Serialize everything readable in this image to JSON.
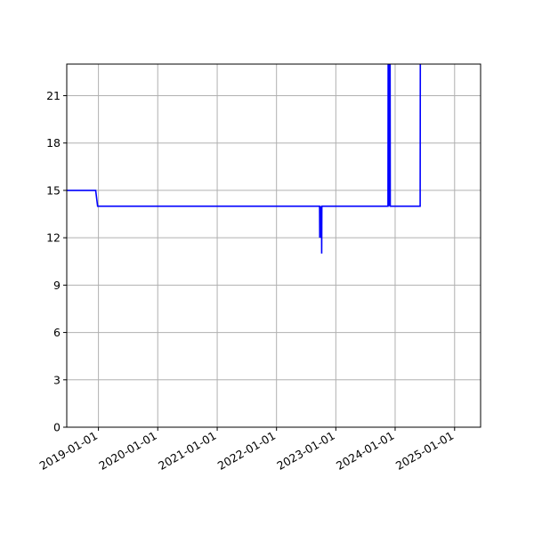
{
  "chart_data": {
    "type": "line",
    "title": "",
    "xlabel": "",
    "ylabel": "",
    "x_axis": {
      "type": "date",
      "range": [
        "2018-06-20",
        "2025-06-10"
      ],
      "ticks": [
        "2019-01-01",
        "2020-01-01",
        "2021-01-01",
        "2022-01-01",
        "2023-01-01",
        "2024-01-01",
        "2025-01-01"
      ],
      "tick_labels_rotated": true
    },
    "y_axis": {
      "range": [
        0,
        23
      ],
      "ticks": [
        0,
        3,
        6,
        9,
        12,
        15,
        18,
        21
      ],
      "tick_labels": [
        "0",
        "3",
        "6",
        "9",
        "12",
        "15",
        "18",
        "21"
      ]
    },
    "grid": true,
    "series": [
      {
        "color": "#0000ff",
        "points": [
          [
            "2018-06-20",
            15
          ],
          [
            "2018-12-15",
            15
          ],
          [
            "2018-12-27",
            14
          ],
          [
            "2022-09-23",
            14
          ],
          [
            "2022-09-24",
            12
          ],
          [
            "2022-09-25",
            14
          ],
          [
            "2022-09-26",
            12
          ],
          [
            "2022-09-27",
            14
          ],
          [
            "2022-09-28",
            12
          ],
          [
            "2022-09-29",
            14
          ],
          [
            "2022-09-30",
            12
          ],
          [
            "2022-10-01",
            14
          ],
          [
            "2022-10-02",
            12
          ],
          [
            "2022-10-03",
            14
          ],
          [
            "2022-10-04",
            12
          ],
          [
            "2022-10-05",
            14
          ],
          [
            "2022-10-06",
            11
          ],
          [
            "2022-10-07",
            14
          ],
          [
            "2023-11-18",
            14
          ],
          [
            "2023-11-19",
            23
          ],
          [
            "2023-11-20",
            14
          ],
          [
            "2023-11-21",
            23
          ],
          [
            "2023-11-22",
            14
          ],
          [
            "2023-11-23",
            23
          ],
          [
            "2023-11-24",
            14
          ],
          [
            "2023-11-25",
            23
          ],
          [
            "2023-11-26",
            14
          ],
          [
            "2023-11-27",
            23
          ],
          [
            "2023-11-28",
            14
          ],
          [
            "2023-11-29",
            23
          ],
          [
            "2023-11-30",
            14
          ],
          [
            "2023-12-01",
            23
          ],
          [
            "2023-12-02",
            14
          ],
          [
            "2024-06-03",
            14
          ],
          [
            "2024-06-04",
            23
          ]
        ]
      }
    ]
  }
}
